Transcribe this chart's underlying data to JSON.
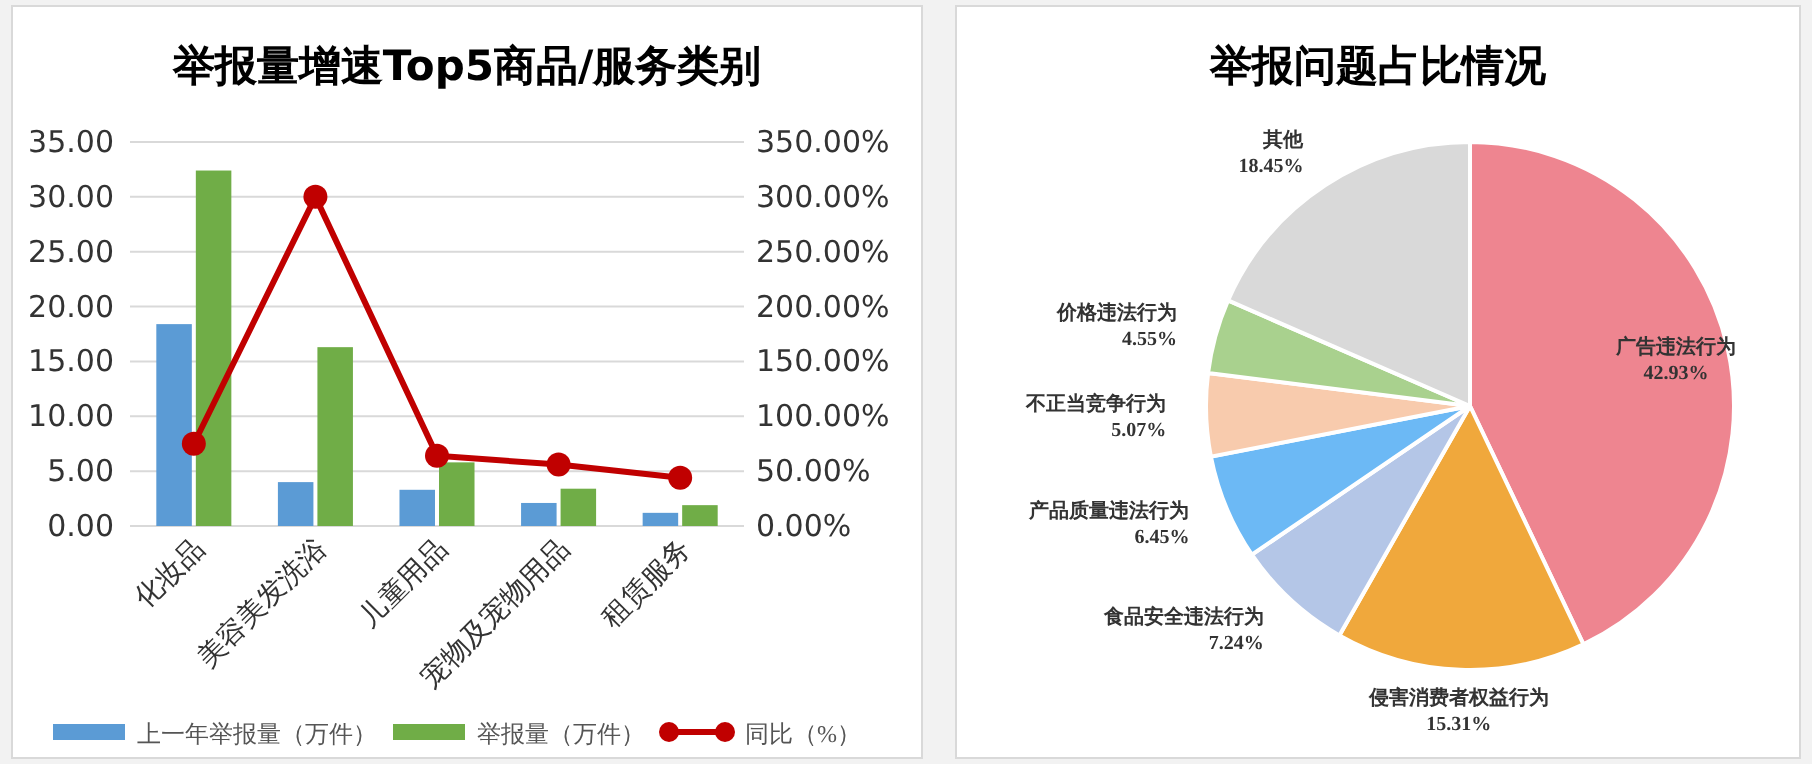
{
  "chart_data": [
    {
      "type": "bar",
      "title": "举报量增速Top5商品/服务类别",
      "categories": [
        "化妆品",
        "美容美发洗浴",
        "儿童用品",
        "宠物及宠物用品",
        "租赁服务"
      ],
      "series": [
        {
          "name": "上一年举报量（万件）",
          "color": "#5b9bd5",
          "values": [
            18.4,
            4.0,
            3.3,
            2.1,
            1.2
          ]
        },
        {
          "name": "举报量（万件）",
          "color": "#70ad47",
          "values": [
            32.4,
            16.3,
            5.8,
            3.4,
            1.9
          ]
        },
        {
          "name": "同比（%）",
          "type": "line",
          "axis": "y2",
          "color": "#c00000",
          "marker": "circle",
          "values": [
            75,
            300,
            64,
            56,
            44
          ]
        }
      ],
      "ylim": [
        0,
        35
      ],
      "yticks": [
        {
          "value": 0,
          "label": "0.00"
        },
        {
          "value": 5,
          "label": "5.00"
        },
        {
          "value": 10,
          "label": "10.00"
        },
        {
          "value": 15,
          "label": "15.00"
        },
        {
          "value": 20,
          "label": "20.00"
        },
        {
          "value": 25,
          "label": "25.00"
        },
        {
          "value": 30,
          "label": "30.00"
        },
        {
          "value": 35,
          "label": "35.00"
        }
      ],
      "y2lim": [
        0,
        350
      ],
      "y2ticks": [
        {
          "value": 0,
          "label": "0.00%"
        },
        {
          "value": 50,
          "label": "50.00%"
        },
        {
          "value": 100,
          "label": "100.00%"
        },
        {
          "value": 150,
          "label": "150.00%"
        },
        {
          "value": 200,
          "label": "200.00%"
        },
        {
          "value": 250,
          "label": "250.00%"
        },
        {
          "value": 300,
          "label": "300.00%"
        },
        {
          "value": 350,
          "label": "350.00%"
        }
      ],
      "grid": "y",
      "legend": "bottom"
    },
    {
      "type": "pie",
      "title": "举报问题占比情况",
      "categories": [
        "广告违法行为",
        "侵害消费者权益行为",
        "食品安全违法行为",
        "产品质量违法行为",
        "不正当竞争行为",
        "价格违法行为",
        "其他"
      ],
      "values": [
        42.93,
        15.31,
        7.24,
        6.45,
        5.07,
        4.55,
        18.45
      ],
      "colors": [
        "#ee8590",
        "#f0a83c",
        "#b4c6e7",
        "#6cb9f5",
        "#f8cbad",
        "#a9d18e",
        "#d9d9d9"
      ],
      "value_labels": [
        "42.93%",
        "15.31%",
        "7.24%",
        "6.45%",
        "5.07%",
        "4.55%",
        "18.45%"
      ]
    }
  ]
}
